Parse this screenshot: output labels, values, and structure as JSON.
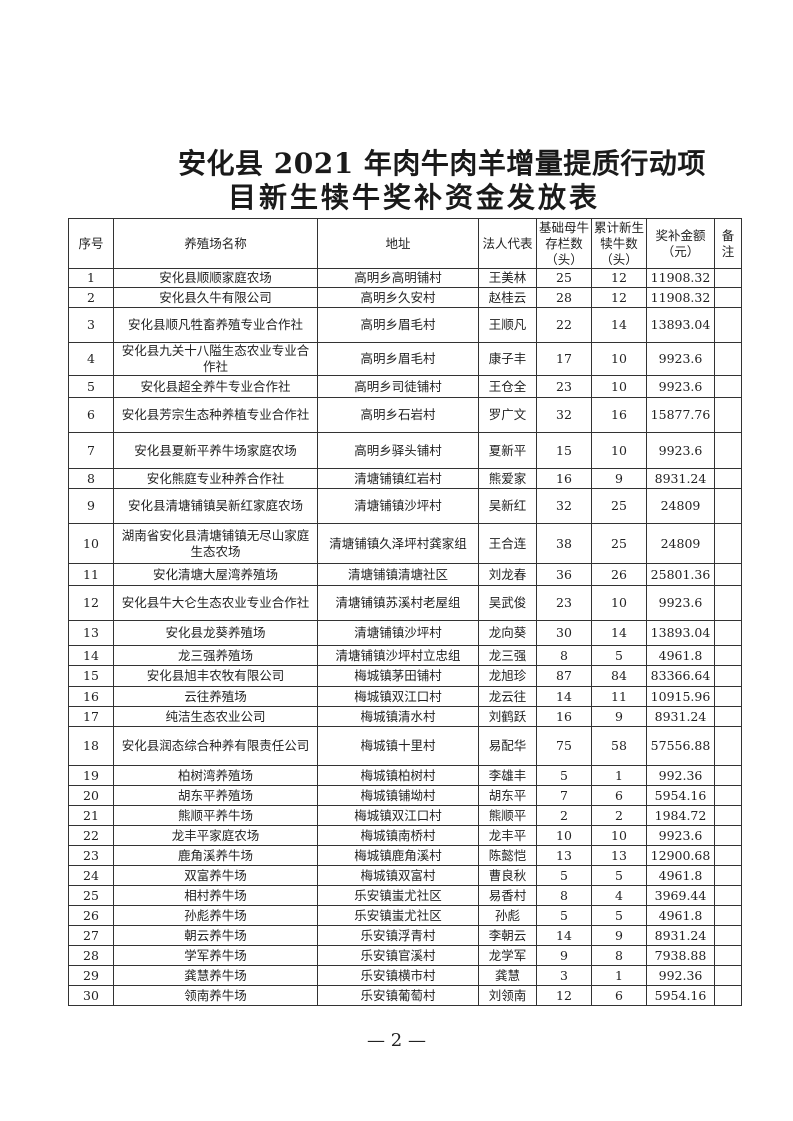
{
  "title": {
    "line1": "安化县 2021 年肉牛肉羊增量提质行动项",
    "line2": "目新生犊牛奖补资金发放表"
  },
  "table": {
    "headers": [
      "序号",
      "养殖场名称",
      "地址",
      "法人代表",
      "基础母牛存栏数（头）",
      "累计新生犊牛数（头）",
      "奖补金额（元）",
      "备注"
    ],
    "rows": [
      [
        "1",
        "安化县顺顺家庭农场",
        "高明乡高明铺村",
        "王美林",
        "25",
        "12",
        "11908.32",
        ""
      ],
      [
        "2",
        "安化县久牛有限公司",
        "高明乡久安村",
        "赵桂云",
        "28",
        "12",
        "11908.32",
        ""
      ],
      [
        "3",
        "安化县顺凡牲畜养殖专业合作社",
        "高明乡眉毛村",
        "王顺凡",
        "22",
        "14",
        "13893.04",
        ""
      ],
      [
        "4",
        "安化县九关十八隘生态农业专业合作社",
        "高明乡眉毛村",
        "康子丰",
        "17",
        "10",
        "9923.6",
        ""
      ],
      [
        "5",
        "安化县超全养牛专业合作社",
        "高明乡司徒铺村",
        "王仓全",
        "23",
        "10",
        "9923.6",
        ""
      ],
      [
        "6",
        "安化县芳宗生态种养植专业合作社",
        "高明乡石岩村",
        "罗广文",
        "32",
        "16",
        "15877.76",
        ""
      ],
      [
        "7",
        "安化县夏新平养牛场家庭农场",
        "高明乡驿头铺村",
        "夏新平",
        "15",
        "10",
        "9923.6",
        ""
      ],
      [
        "8",
        "安化熊庭专业种养合作社",
        "清塘铺镇红岩村",
        "熊爱家",
        "16",
        "9",
        "8931.24",
        ""
      ],
      [
        "9",
        "安化县清塘铺镇吴新红家庭农场",
        "清塘铺镇沙坪村",
        "吴新红",
        "32",
        "25",
        "24809",
        ""
      ],
      [
        "10",
        "湖南省安化县清塘铺镇无尽山家庭生态农场",
        "清塘铺镇久泽坪村龚家组",
        "王合连",
        "38",
        "25",
        "24809",
        ""
      ],
      [
        "11",
        "安化清塘大屋湾养殖场",
        "清塘铺镇清塘社区",
        "刘龙春",
        "36",
        "26",
        "25801.36",
        ""
      ],
      [
        "12",
        "安化县牛大仑生态农业专业合作社",
        "清塘铺镇苏溪村老屋组",
        "吴武俊",
        "23",
        "10",
        "9923.6",
        ""
      ],
      [
        "13",
        "安化县龙葵养殖场",
        "清塘铺镇沙坪村",
        "龙向葵",
        "30",
        "14",
        "13893.04",
        ""
      ],
      [
        "14",
        "龙三强养殖场",
        "清塘铺镇沙坪村立忠组",
        "龙三强",
        "8",
        "5",
        "4961.8",
        ""
      ],
      [
        "15",
        "安化县旭丰农牧有限公司",
        "梅城镇茅田铺村",
        "龙旭珍",
        "87",
        "84",
        "83366.64",
        ""
      ],
      [
        "16",
        "云往养殖场",
        "梅城镇双江口村",
        "龙云往",
        "14",
        "11",
        "10915.96",
        ""
      ],
      [
        "17",
        "纯洁生态农业公司",
        "梅城镇清水村",
        "刘鹤跃",
        "16",
        "9",
        "8931.24",
        ""
      ],
      [
        "18",
        "安化县润态综合种养有限责任公司",
        "梅城镇十里村",
        "易配华",
        "75",
        "58",
        "57556.88",
        ""
      ],
      [
        "19",
        "柏树湾养殖场",
        "梅城镇柏树村",
        "李雄丰",
        "5",
        "1",
        "992.36",
        ""
      ],
      [
        "20",
        "胡东平养殖场",
        "梅城镇铺坳村",
        "胡东平",
        "7",
        "6",
        "5954.16",
        ""
      ],
      [
        "21",
        "熊顺平养牛场",
        "梅城镇双江口村",
        "熊顺平",
        "2",
        "2",
        "1984.72",
        ""
      ],
      [
        "22",
        "龙丰平家庭农场",
        "梅城镇南桥村",
        "龙丰平",
        "10",
        "10",
        "9923.6",
        ""
      ],
      [
        "23",
        "鹿角溪养牛场",
        "梅城镇鹿角溪村",
        "陈懿恺",
        "13",
        "13",
        "12900.68",
        ""
      ],
      [
        "24",
        "双富养牛场",
        "梅城镇双富村",
        "曹良秋",
        "5",
        "5",
        "4961.8",
        ""
      ],
      [
        "25",
        "相村养牛场",
        "乐安镇蚩尤社区",
        "易香村",
        "8",
        "4",
        "3969.44",
        ""
      ],
      [
        "26",
        "孙彪养牛场",
        "乐安镇蚩尤社区",
        "孙彪",
        "5",
        "5",
        "4961.8",
        ""
      ],
      [
        "27",
        "朝云养牛场",
        "乐安镇浮青村",
        "李朝云",
        "14",
        "9",
        "8931.24",
        ""
      ],
      [
        "28",
        "学军养牛场",
        "乐安镇官溪村",
        "龙学军",
        "9",
        "8",
        "7938.88",
        ""
      ],
      [
        "29",
        "龚慧养牛场",
        "乐安镇横市村",
        "龚慧",
        "3",
        "1",
        "992.36",
        ""
      ],
      [
        "30",
        "领南养牛场",
        "乐安镇葡萄村",
        "刘领南",
        "12",
        "6",
        "5954.16",
        ""
      ]
    ]
  },
  "footer": {
    "page": "— 2 —"
  }
}
